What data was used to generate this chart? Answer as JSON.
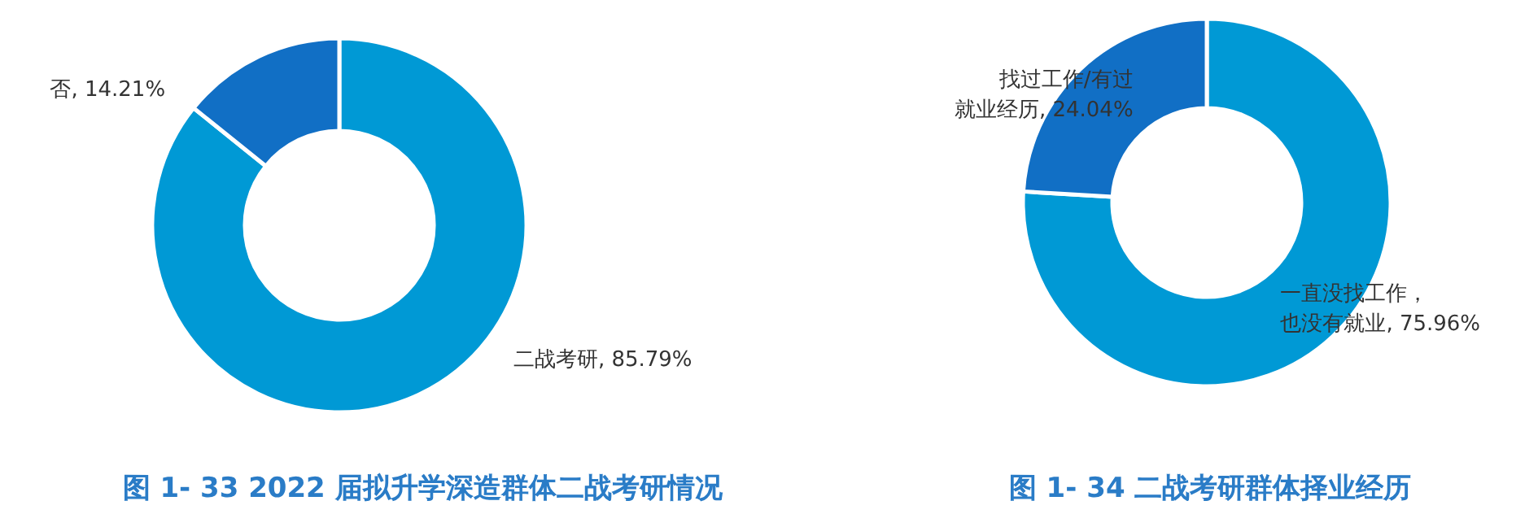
{
  "chart_data": [
    {
      "type": "donut",
      "title": "图 1- 33  2022 届拟升学深造群体二战考研情况",
      "categories": [
        "二战考研",
        "否"
      ],
      "values": [
        85.79,
        14.21
      ],
      "value_labels": [
        "85.79%",
        "14.21%"
      ],
      "colors": [
        "#0099d5",
        "#116fc5"
      ]
    },
    {
      "type": "donut",
      "title": "图 1- 34  二战考研群体择业经历",
      "categories": [
        "一直没找工作，也没有就业",
        "找过工作/有过就业经历"
      ],
      "values": [
        75.96,
        24.04
      ],
      "value_labels": [
        "75.96%",
        "24.04%"
      ],
      "colors": [
        "#0099d5",
        "#116fc5"
      ]
    }
  ]
}
